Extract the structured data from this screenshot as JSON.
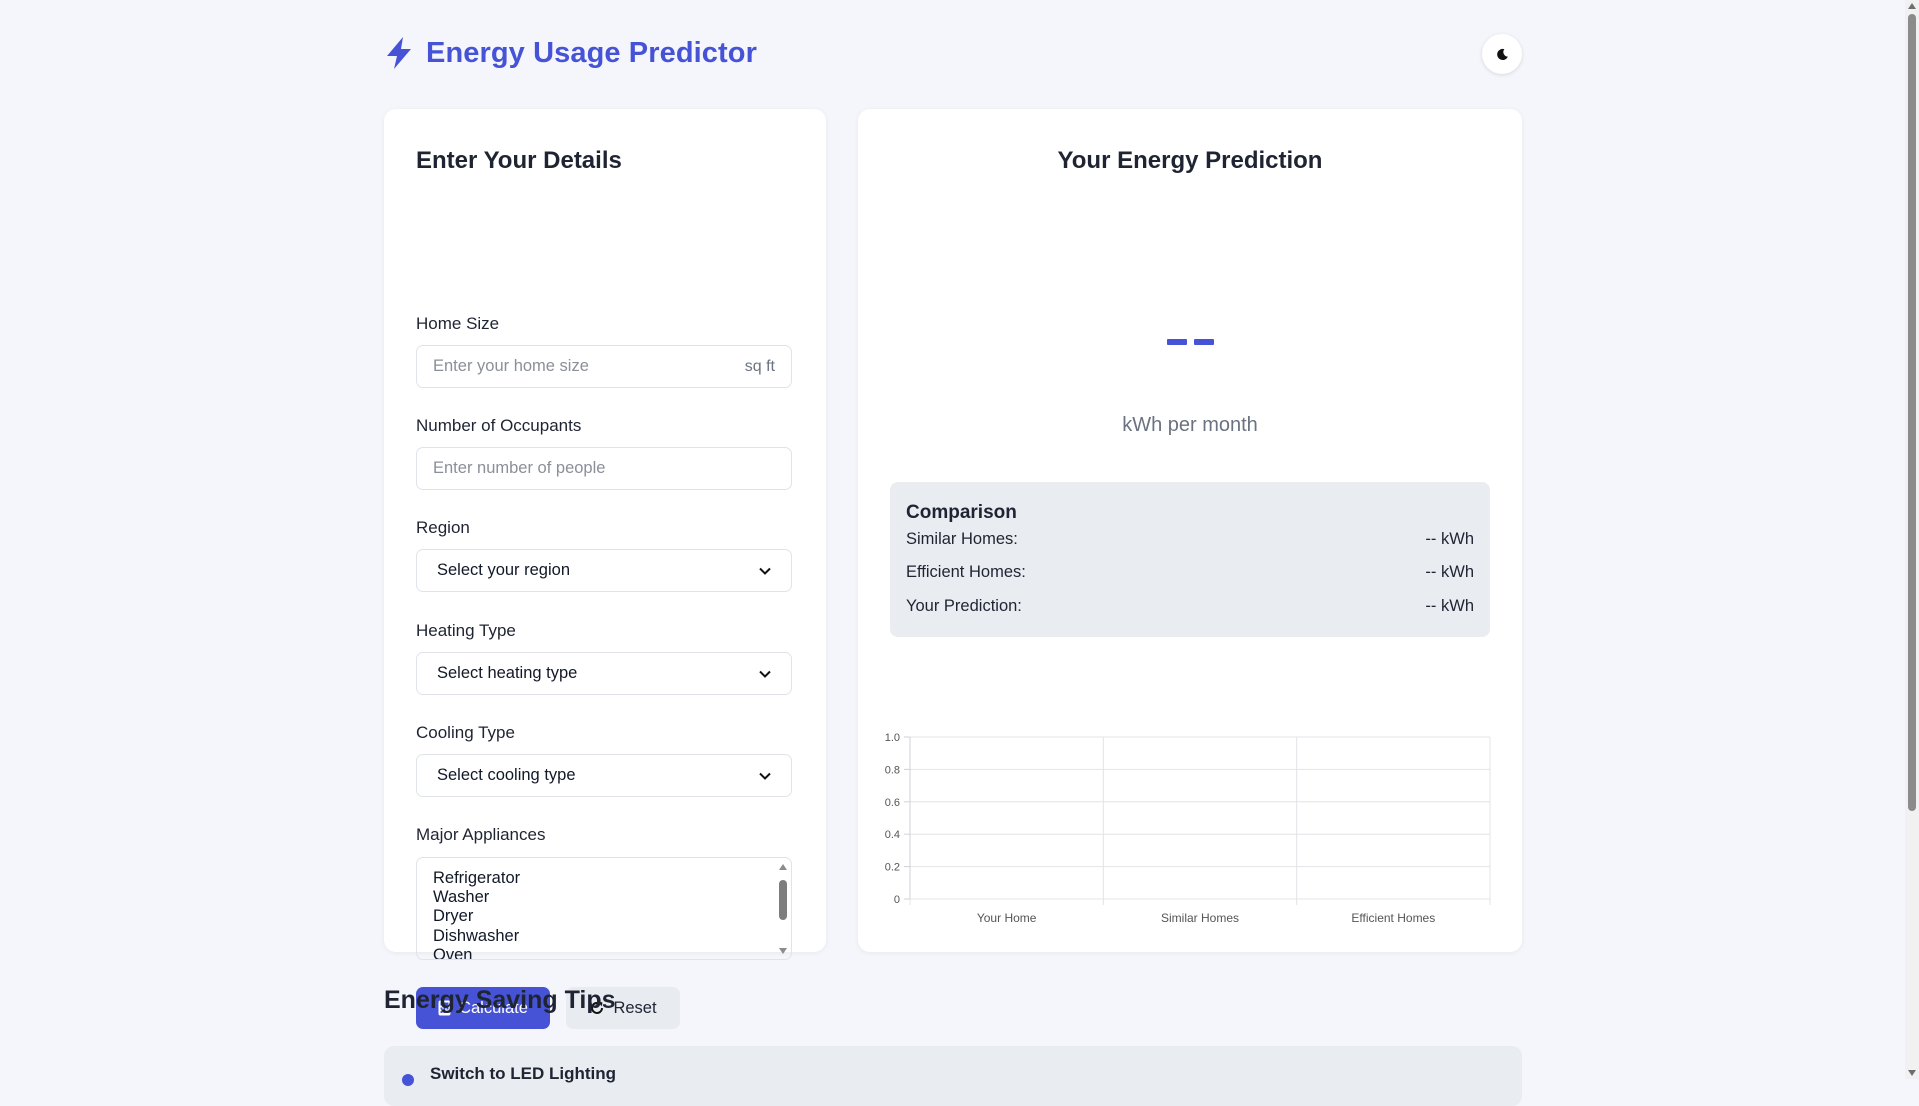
{
  "app": {
    "title": "Energy Usage Predictor",
    "logo_icon": "bolt-icon",
    "theme_icon": "moon-icon"
  },
  "form": {
    "title": "Enter Your Details",
    "home_size": {
      "label": "Home Size",
      "placeholder": "Enter your home size",
      "suffix": "sq ft"
    },
    "occupants": {
      "label": "Number of Occupants",
      "placeholder": "Enter number of people"
    },
    "region": {
      "label": "Region",
      "selected": "Select your region"
    },
    "heating": {
      "label": "Heating Type",
      "selected": "Select heating type"
    },
    "cooling": {
      "label": "Cooling Type",
      "selected": "Select cooling type"
    },
    "appliances": {
      "label": "Major Appliances",
      "options": [
        "Refrigerator",
        "Washer",
        "Dryer",
        "Dishwasher",
        "Oven"
      ]
    },
    "calculate_label": "Calculate",
    "reset_label": "Reset"
  },
  "prediction": {
    "title": "Your Energy Prediction",
    "value": "--",
    "unit": "kWh per month",
    "comparison": {
      "title": "Comparison",
      "rows": [
        {
          "label": "Similar Homes:",
          "value": "-- kWh"
        },
        {
          "label": "Efficient Homes:",
          "value": "-- kWh"
        },
        {
          "label": "Your Prediction:",
          "value": "-- kWh"
        }
      ]
    }
  },
  "chart_data": {
    "type": "bar",
    "categories": [
      "Your Home",
      "Similar Homes",
      "Efficient Homes"
    ],
    "values": [
      null,
      null,
      null
    ],
    "y_ticks": [
      "0",
      "0.2",
      "0.4",
      "0.6",
      "0.8",
      "1.0"
    ],
    "ylim": [
      0,
      1
    ],
    "grid": true
  },
  "tips": {
    "title": "Energy Saving Tips",
    "items": [
      {
        "title": "Switch to LED Lighting"
      }
    ]
  },
  "colors": {
    "accent": "#4653d6",
    "background": "#f4f6fb",
    "card": "#ffffff",
    "panel": "#e9ecf0"
  }
}
